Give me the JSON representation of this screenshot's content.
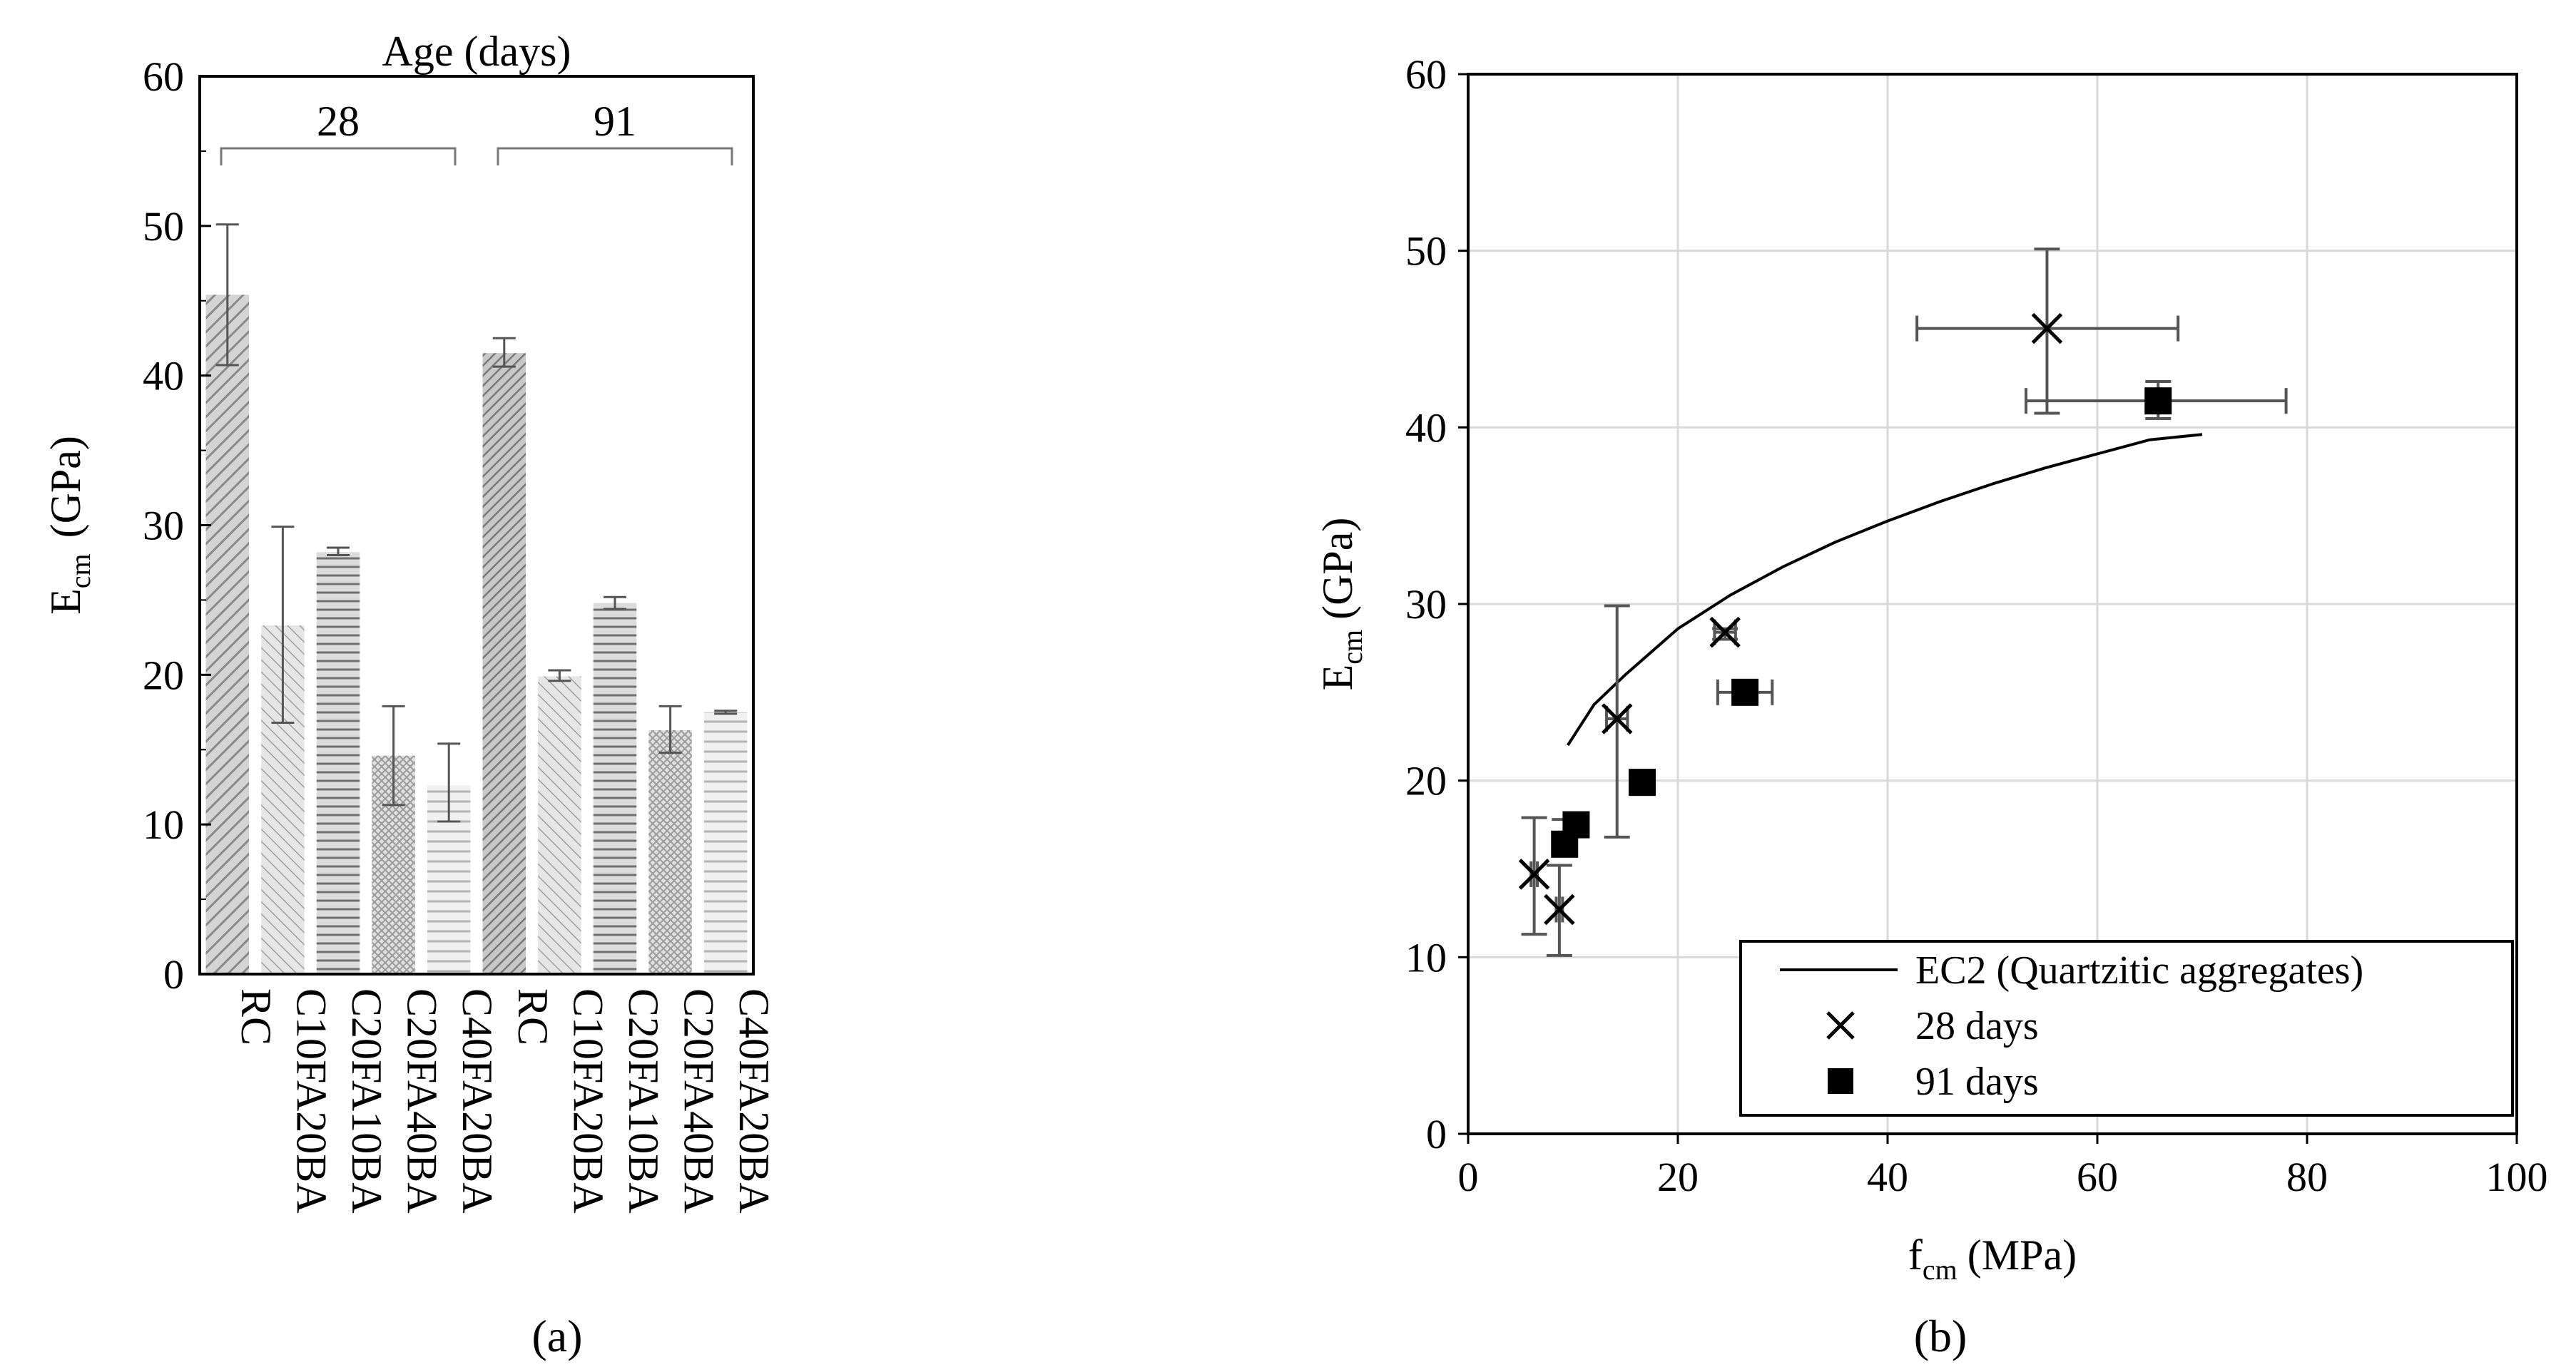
{
  "colors": {
    "axis": "#000000",
    "grid": "#d9d9d9",
    "error_bar": "#555555",
    "bar_fill": "#d4d4d4",
    "bar_hatch": "#8a8a8a",
    "marker": "#000000"
  },
  "chart_data": [
    {
      "type": "bar",
      "panel": "a",
      "caption": "(a)",
      "title": "Age (days)",
      "ylabel": "E",
      "ylabel_sub": "cm",
      "ylabel_unit": "(GPa)",
      "xlabel": "",
      "ylim": [
        0,
        60
      ],
      "yticks": [
        0,
        10,
        20,
        30,
        40,
        50,
        60
      ],
      "groups": [
        {
          "label": "28",
          "categories": [
            "RC",
            "C10FA20BA",
            "C20FA10BA",
            "C20FA40BA",
            "C40FA20BA"
          ]
        },
        {
          "label": "91",
          "categories": [
            "RC",
            "C10FA20BA",
            "C20FA10BA",
            "C20FA40BA",
            "C40FA20BA"
          ]
        }
      ],
      "categories": [
        "RC",
        "C10FA20BA",
        "C20FA10BA",
        "C20FA40BA",
        "C40FA20BA",
        "RC",
        "C10FA20BA",
        "C20FA10BA",
        "C20FA40BA",
        "C40FA20BA"
      ],
      "values": [
        45.4,
        23.3,
        28.2,
        14.6,
        12.6,
        41.5,
        19.9,
        24.8,
        16.3,
        17.5
      ],
      "error_low": [
        40.7,
        16.8,
        28.0,
        11.3,
        10.2,
        40.6,
        19.6,
        24.4,
        14.8,
        17.4
      ],
      "error_high": [
        50.1,
        29.9,
        28.5,
        17.9,
        15.4,
        42.5,
        20.3,
        25.2,
        17.9,
        17.6
      ],
      "hatch": [
        "diag-right",
        "diag-left",
        "horizontal",
        "cross",
        "horizontal-light",
        "diag-right-dense",
        "diag-left",
        "horizontal",
        "cross",
        "horizontal-light"
      ]
    },
    {
      "type": "scatter",
      "panel": "b",
      "caption": "(b)",
      "xlabel": "f",
      "xlabel_sub": "cm",
      "xlabel_unit": "(MPa)",
      "ylabel": "E",
      "ylabel_sub": "cm",
      "ylabel_unit": "(GPa)",
      "xlim": [
        0,
        100
      ],
      "ylim": [
        0,
        60
      ],
      "xticks": [
        0,
        20,
        40,
        60,
        80,
        100
      ],
      "yticks": [
        0,
        10,
        20,
        30,
        40,
        50,
        60
      ],
      "grid": true,
      "legend_position": "bottom-right",
      "series": [
        {
          "name": "EC2 (Quartzitic aggregates)",
          "kind": "line",
          "x": [
            9.5,
            12,
            15,
            20,
            25,
            30,
            35,
            40,
            45,
            50,
            55,
            60,
            65,
            70
          ],
          "y": [
            22.0,
            24.3,
            26.0,
            28.6,
            30.5,
            32.1,
            33.5,
            34.7,
            35.8,
            36.8,
            37.7,
            38.5,
            39.3,
            39.6
          ]
        },
        {
          "name": "28 days",
          "kind": "marker-x",
          "points": [
            {
              "x": 55.2,
              "y": 45.6,
              "x_err": [
                42.8,
                67.7
              ],
              "y_err": [
                40.8,
                50.1
              ]
            },
            {
              "x": 14.2,
              "y": 23.5,
              "x_err": [
                13.2,
                15.2
              ],
              "y_err": [
                16.8,
                29.9
              ]
            },
            {
              "x": 24.5,
              "y": 28.4,
              "x_err": [
                23.5,
                25.5
              ],
              "y_err": [
                28.0,
                28.6
              ]
            },
            {
              "x": 6.3,
              "y": 14.7,
              "x_err": [
                6.0,
                6.6
              ],
              "y_err": [
                11.3,
                17.9
              ]
            },
            {
              "x": 8.7,
              "y": 12.7,
              "x_err": [
                8.4,
                9.0
              ],
              "y_err": [
                10.1,
                15.2
              ]
            }
          ]
        },
        {
          "name": "91 days",
          "kind": "marker-square",
          "points": [
            {
              "x": 65.8,
              "y": 41.5,
              "x_err": [
                53.2,
                78.0
              ],
              "y_err": [
                40.5,
                42.6
              ]
            },
            {
              "x": 26.4,
              "y": 25.0,
              "x_err": [
                23.8,
                29.0
              ],
              "y_err": [
                24.7,
                25.3
              ]
            },
            {
              "x": 16.6,
              "y": 19.9,
              "x_err": [
                16.2,
                17.0
              ],
              "y_err": [
                19.6,
                20.2
              ]
            },
            {
              "x": 10.3,
              "y": 17.5,
              "x_err": [
                9.8,
                10.8
              ],
              "y_err": [
                17.4,
                17.6
              ]
            },
            {
              "x": 9.2,
              "y": 16.4,
              "x_err": [
                8.7,
                9.7
              ],
              "y_err": [
                15.8,
                17.8
              ]
            }
          ]
        }
      ]
    }
  ]
}
